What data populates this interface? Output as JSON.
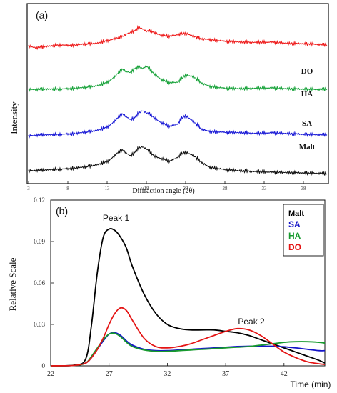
{
  "chart_data": [
    {
      "type": "line",
      "panel_label": "(a)",
      "xlabel": "Diffraction  angle  (2θ)",
      "ylabel": "Intensity",
      "x_ticks": [
        "3",
        "8",
        "13",
        "18",
        "23",
        "28",
        "33",
        "38"
      ],
      "xlim": [
        3,
        41
      ],
      "grid": false,
      "series": [
        {
          "name": "DO",
          "color": "#ee1c1c",
          "x": [
            3,
            4,
            5,
            6,
            7,
            8,
            9,
            10,
            11,
            12,
            13,
            14,
            15,
            15.5,
            16,
            16.5,
            17,
            17.5,
            18,
            18.5,
            19,
            20,
            21,
            22,
            23,
            24,
            25,
            26,
            28,
            30,
            32,
            34,
            36,
            38,
            40,
            41
          ],
          "y": [
            0.76,
            0.8,
            0.77,
            0.75,
            0.73,
            0.74,
            0.73,
            0.71,
            0.7,
            0.68,
            0.63,
            0.58,
            0.52,
            0.46,
            0.43,
            0.38,
            0.31,
            0.34,
            0.4,
            0.38,
            0.44,
            0.5,
            0.52,
            0.48,
            0.45,
            0.52,
            0.58,
            0.6,
            0.64,
            0.66,
            0.67,
            0.66,
            0.69,
            0.7,
            0.72,
            0.73
          ]
        },
        {
          "name": "HA",
          "color": "#19a33b",
          "x": [
            3,
            4,
            5,
            6,
            7,
            8,
            9,
            10,
            11,
            12,
            13,
            14,
            14.5,
            15,
            15.5,
            16,
            16.5,
            17,
            17.5,
            18,
            18.5,
            19,
            20,
            21,
            22,
            23,
            24,
            25,
            26,
            28,
            30,
            32,
            34,
            36,
            38,
            40,
            41
          ],
          "y": [
            1.03,
            1.03,
            1.02,
            1.02,
            1.02,
            1.01,
            1.0,
            0.98,
            0.96,
            0.93,
            0.86,
            0.72,
            0.6,
            0.54,
            0.6,
            0.62,
            0.52,
            0.48,
            0.52,
            0.47,
            0.55,
            0.66,
            0.8,
            0.87,
            0.85,
            0.68,
            0.72,
            0.87,
            0.95,
            1.0,
            1.01,
            1.0,
            0.99,
            1.01,
            1.02,
            1.03,
            1.02
          ]
        },
        {
          "name": "SA",
          "color": "#1a1ad6",
          "x": [
            3,
            4,
            5,
            6,
            7,
            8,
            9,
            10,
            11,
            12,
            13,
            14,
            14.5,
            15,
            15.5,
            16,
            16.5,
            17,
            17.5,
            18,
            18.5,
            19,
            20,
            21,
            22,
            22.5,
            23,
            24,
            25,
            26,
            28,
            30,
            32,
            34,
            36,
            38,
            40,
            41
          ],
          "y": [
            1.41,
            1.39,
            1.38,
            1.38,
            1.37,
            1.36,
            1.35,
            1.32,
            1.3,
            1.26,
            1.2,
            1.05,
            0.93,
            0.88,
            0.95,
            1.02,
            0.96,
            0.86,
            0.8,
            0.85,
            0.88,
            0.98,
            1.1,
            1.18,
            1.12,
            0.98,
            0.92,
            1.06,
            1.24,
            1.3,
            1.32,
            1.33,
            1.35,
            1.33,
            1.35,
            1.37,
            1.38,
            1.38
          ]
        },
        {
          "name": "Malt",
          "color": "#111111",
          "x": [
            3,
            4,
            5,
            6,
            7,
            8,
            9,
            10,
            11,
            12,
            13,
            14,
            14.5,
            15,
            15.5,
            16,
            16.5,
            17,
            17.5,
            18,
            18.5,
            19,
            20,
            21,
            22,
            22.5,
            23,
            24,
            25,
            26,
            28,
            30,
            32,
            34,
            36,
            38,
            40,
            41
          ],
          "y": [
            1.63,
            1.62,
            1.61,
            1.6,
            1.59,
            1.58,
            1.56,
            1.54,
            1.51,
            1.47,
            1.41,
            1.26,
            1.16,
            1.13,
            1.21,
            1.27,
            1.18,
            1.08,
            1.05,
            1.1,
            1.18,
            1.28,
            1.34,
            1.4,
            1.3,
            1.22,
            1.18,
            1.26,
            1.42,
            1.54,
            1.6,
            1.63,
            1.65,
            1.66,
            1.67,
            1.68,
            1.69,
            1.7
          ]
        }
      ]
    },
    {
      "type": "line",
      "panel_label": "(b)",
      "xlabel": "Time (min)",
      "ylabel": "Relative Scale",
      "x_ticks": [
        "22",
        "27",
        "32",
        "37",
        "42"
      ],
      "y_ticks": [
        "0",
        "0.03",
        "0.06",
        "0.09",
        "0.12"
      ],
      "xlim": [
        22,
        45.5
      ],
      "ylim": [
        0,
        0.12
      ],
      "grid": false,
      "legend_position": "top-right",
      "annotations": [
        {
          "text": "Peak 1",
          "x": 27.6,
          "y": 0.105
        },
        {
          "text": "Peak 2",
          "x": 39.2,
          "y": 0.03
        }
      ],
      "series": [
        {
          "name": "Malt",
          "color": "#000000",
          "x": [
            22,
            24,
            25,
            25.5,
            26,
            26.5,
            27,
            27.5,
            28,
            28.5,
            29,
            30,
            31,
            32,
            33,
            34,
            35,
            36,
            37,
            38,
            39,
            40,
            41,
            42,
            43,
            44,
            45,
            45.5
          ],
          "y": [
            0.0,
            0.0005,
            0.005,
            0.03,
            0.068,
            0.093,
            0.099,
            0.098,
            0.093,
            0.085,
            0.072,
            0.052,
            0.038,
            0.03,
            0.027,
            0.026,
            0.026,
            0.026,
            0.025,
            0.024,
            0.022,
            0.019,
            0.016,
            0.013,
            0.01,
            0.007,
            0.004,
            0.002
          ]
        },
        {
          "name": "SA",
          "color": "#1515c8",
          "x": [
            22,
            24,
            25,
            25.5,
            26,
            26.5,
            27,
            27.5,
            28,
            28.5,
            29,
            30,
            31,
            32,
            33,
            34,
            35,
            36,
            37,
            38,
            39,
            40,
            41,
            42,
            43,
            44,
            45,
            45.5
          ],
          "y": [
            0.0,
            0.0003,
            0.002,
            0.006,
            0.012,
            0.018,
            0.023,
            0.024,
            0.022,
            0.018,
            0.015,
            0.012,
            0.011,
            0.011,
            0.0115,
            0.012,
            0.0125,
            0.013,
            0.0135,
            0.014,
            0.0142,
            0.0143,
            0.0142,
            0.0138,
            0.013,
            0.012,
            0.011,
            0.011
          ]
        },
        {
          "name": "HA",
          "color": "#179a2e",
          "x": [
            22,
            24,
            25,
            25.5,
            26,
            26.5,
            27,
            27.5,
            28,
            28.5,
            29,
            30,
            31,
            32,
            33,
            34,
            35,
            36,
            37,
            38,
            39,
            40,
            41,
            42,
            43,
            44,
            45,
            45.5
          ],
          "y": [
            0.0,
            0.0003,
            0.002,
            0.007,
            0.013,
            0.019,
            0.023,
            0.0235,
            0.021,
            0.017,
            0.014,
            0.0115,
            0.0105,
            0.0105,
            0.011,
            0.0115,
            0.012,
            0.0125,
            0.013,
            0.0135,
            0.014,
            0.015,
            0.016,
            0.017,
            0.0175,
            0.0175,
            0.017,
            0.0165
          ]
        },
        {
          "name": "DO",
          "color": "#e41414",
          "x": [
            22,
            24,
            25,
            25.5,
            26,
            26.5,
            27,
            27.5,
            28,
            28.5,
            29,
            30,
            31,
            32,
            33,
            34,
            35,
            36,
            37,
            38,
            39,
            40,
            41,
            42,
            43,
            44,
            45,
            45.5
          ],
          "y": [
            0.0,
            0.0003,
            0.002,
            0.006,
            0.012,
            0.02,
            0.03,
            0.038,
            0.042,
            0.04,
            0.033,
            0.02,
            0.014,
            0.013,
            0.014,
            0.016,
            0.019,
            0.022,
            0.025,
            0.027,
            0.026,
            0.022,
            0.016,
            0.01,
            0.006,
            0.003,
            0.0015,
            0.001
          ]
        }
      ]
    }
  ]
}
